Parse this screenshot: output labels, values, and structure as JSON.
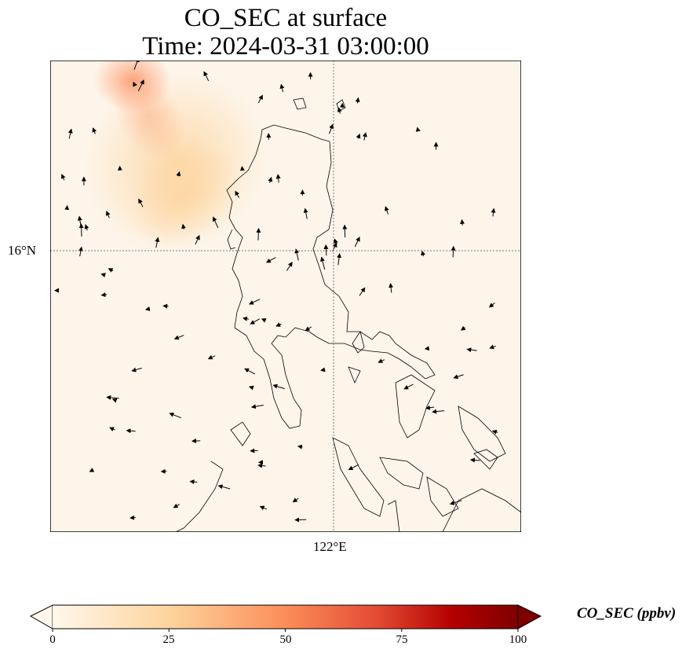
{
  "title": {
    "line1": "CO_SEC at surface",
    "line2": "Time: 2024-03-31 03:00:00"
  },
  "axes": {
    "lat_label": "16°N",
    "lon_label": "122°E"
  },
  "colorbar": {
    "label": "CO_SEC (ppbv)",
    "ticks": [
      "0",
      "25",
      "50",
      "75",
      "100"
    ],
    "range": [
      0,
      100
    ],
    "extend": "both",
    "colormap": [
      "#fff7ec",
      "#fdd49e",
      "#fc8d59",
      "#d7301f",
      "#b30000",
      "#7f0000"
    ]
  },
  "map": {
    "background": "#fdf5ea",
    "plume_color": "#fc8d59"
  }
}
